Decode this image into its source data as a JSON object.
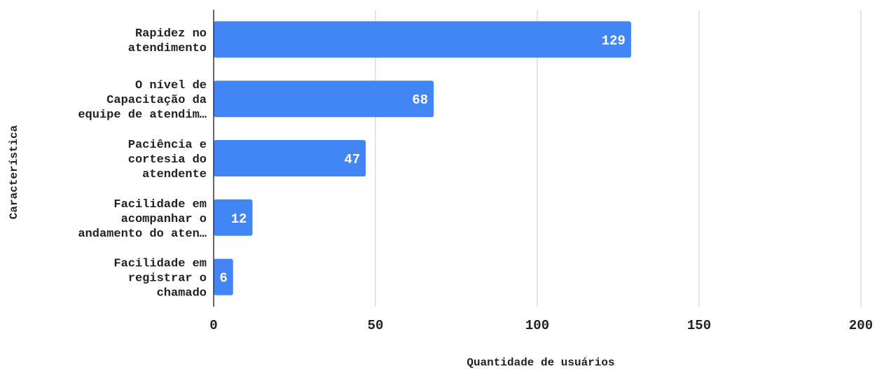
{
  "chart_data": {
    "type": "bar",
    "orientation": "horizontal",
    "categories": [
      [
        "Rapidez no",
        "atendimento"
      ],
      [
        "O nível de",
        "Capacitação da",
        "equipe de atendim…"
      ],
      [
        "Paciência e",
        "cortesia do",
        "atendente"
      ],
      [
        "Facilidade em",
        "acompanhar o",
        "andamento do aten…"
      ],
      [
        "Facilidade em",
        "registrar o",
        "chamado"
      ]
    ],
    "values": [
      129,
      68,
      47,
      12,
      6
    ],
    "data_labels": [
      "129",
      "68",
      "47",
      "12",
      "6"
    ],
    "xlabel": "Quantidade de usuários",
    "ylabel": "Característica",
    "xlim": [
      0,
      200
    ],
    "xticks": [
      0,
      50,
      100,
      150,
      200
    ],
    "xtick_labels": [
      "0",
      "50",
      "100",
      "150",
      "200"
    ],
    "grid": "vertical",
    "legend": "none",
    "bar_color": "#4285f4",
    "grid_color": "#cccccc",
    "axis_color": "#333333"
  }
}
